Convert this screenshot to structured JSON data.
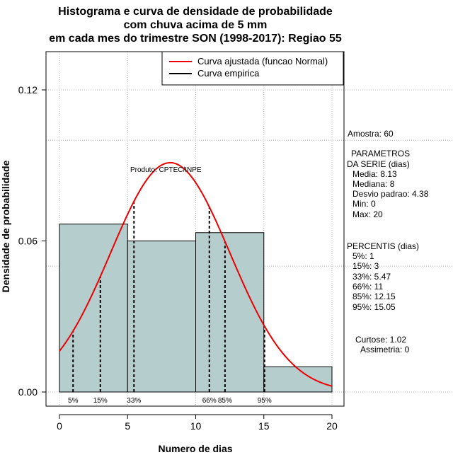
{
  "chart_data": {
    "type": "histogram",
    "title_lines": [
      "Histograma e curva de densidade de probabilidade",
      "com chuva acima de 5 mm",
      "em cada mes do trimestre SON (1998-2017): Regiao 55"
    ],
    "xlabel": "Numero de dias",
    "ylabel": "Densidade de probabilidade",
    "xlim": [
      -1,
      21
    ],
    "ylim": [
      -0.003,
      0.135
    ],
    "x_ticks": [
      0,
      5,
      10,
      15,
      20
    ],
    "x_tick_labels": [
      "0",
      "5",
      "10",
      "15",
      "20"
    ],
    "y_ticks": [
      0.0,
      0.06,
      0.12
    ],
    "y_tick_labels": [
      "0.00",
      "0.06",
      "0.12"
    ],
    "grid": true,
    "grid_x": [
      0,
      5,
      10,
      15,
      20
    ],
    "grid_y": [
      0.0,
      0.05,
      0.1,
      0.12
    ],
    "bins": [
      {
        "x0": 0,
        "x1": 5,
        "density": 0.0667
      },
      {
        "x0": 5,
        "x1": 10,
        "density": 0.06
      },
      {
        "x0": 10,
        "x1": 15,
        "density": 0.0633
      },
      {
        "x0": 15,
        "x1": 20,
        "density": 0.01
      }
    ],
    "bar_color": "#b5cdcd",
    "normal_curve": {
      "mean": 8.13,
      "sd": 4.38,
      "x_from": 0,
      "x_to": 20,
      "color": "#ee0000"
    },
    "percentile_markers": [
      {
        "label": "5%",
        "x": 1
      },
      {
        "label": "15%",
        "x": 3
      },
      {
        "label": "33%",
        "x": 5.47
      },
      {
        "label": "66%",
        "x": 11
      },
      {
        "label": "85%",
        "x": 12.15
      },
      {
        "label": "95%",
        "x": 15.05
      }
    ],
    "legend": {
      "position": "top-right",
      "entries": [
        {
          "label": "Curva ajustada (funcao Normal)",
          "color": "#ee0000"
        },
        {
          "label": "Curva empirica",
          "color": "#000000"
        }
      ]
    },
    "annotation": "Produto: CPTEC/INPE",
    "side_panel": {
      "sample": "Amostra: 60",
      "params_title_1": "PARAMETROS",
      "params_title_2": "DA SERIE (dias)",
      "params": [
        "Media: 8.13",
        "Mediana: 8",
        "Desvio padrao: 4.38",
        "Min: 0",
        "Max: 20"
      ],
      "percentis_title": "PERCENTIS (dias)",
      "percentis": [
        "5%: 1",
        "15%: 3",
        "33%: 5.47",
        "66%: 11",
        "85%: 12.15",
        "95%: 15.05"
      ],
      "curtose": "Curtose: 1.02",
      "assimetria": "Assimetria: 0"
    }
  }
}
